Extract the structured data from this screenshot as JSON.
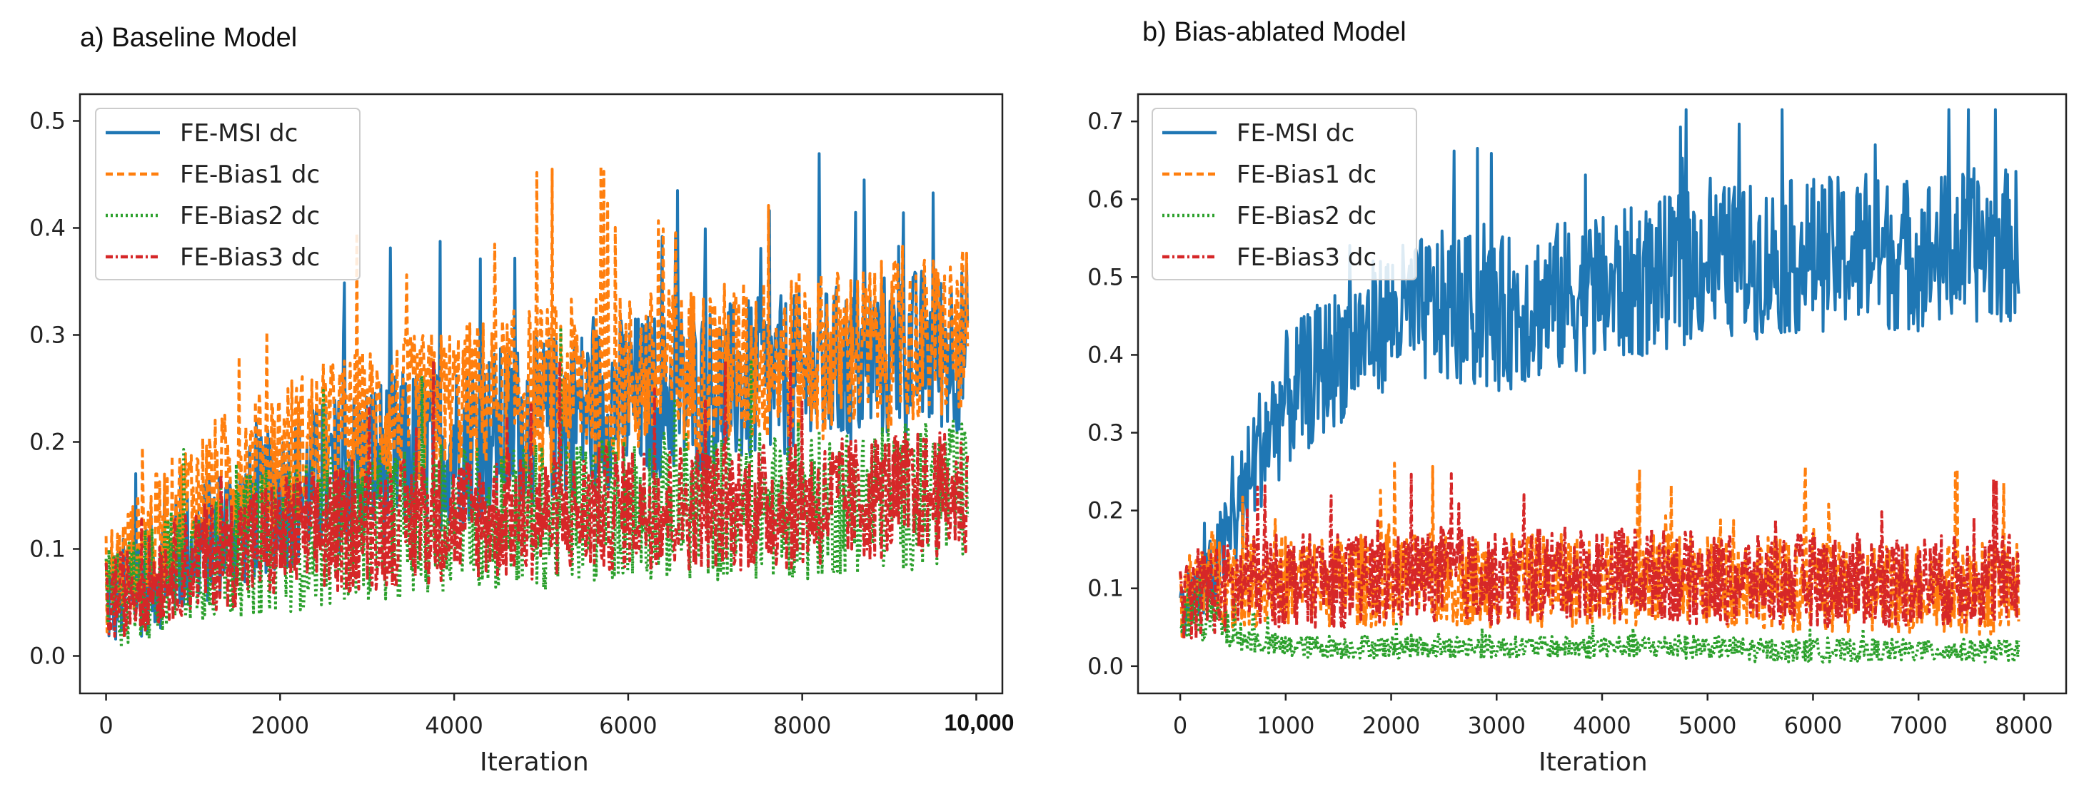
{
  "panels": {
    "a": {
      "label": "a) Baseline Model",
      "xlabel": "Iteration",
      "x_ticks": [
        "0",
        "2000",
        "4000",
        "6000",
        "8000",
        "10,000"
      ],
      "y_ticks": [
        "0.0",
        "0.1",
        "0.2",
        "0.3",
        "0.4",
        "0.5"
      ]
    },
    "b": {
      "label": "b) Bias-ablated Model",
      "xlabel": "Iteration",
      "x_ticks": [
        "0",
        "1000",
        "2000",
        "3000",
        "4000",
        "5000",
        "6000",
        "7000",
        "8000"
      ],
      "y_ticks": [
        "0.0",
        "0.1",
        "0.2",
        "0.3",
        "0.4",
        "0.5",
        "0.6",
        "0.7"
      ]
    }
  },
  "chart_data": [
    {
      "type": "line",
      "title": "a) Baseline Model",
      "xlabel": "Iteration",
      "ylabel": "",
      "xlim": [
        -300,
        10300
      ],
      "ylim": [
        -0.035,
        0.525
      ],
      "legend_position": "top-left",
      "series": [
        {
          "name": "FE-MSI dc",
          "color": "#1f77b4",
          "style": "solid",
          "x": [
            0,
            1000,
            2000,
            3000,
            4000,
            5000,
            6000,
            7000,
            8000,
            9000,
            9900
          ],
          "values": [
            0.05,
            0.1,
            0.15,
            0.18,
            0.2,
            0.22,
            0.24,
            0.25,
            0.26,
            0.28,
            0.29
          ],
          "band": [
            0.05,
            0.06,
            0.07,
            0.08,
            0.08,
            0.08,
            0.08,
            0.08,
            0.08,
            0.08,
            0.08
          ]
        },
        {
          "name": "FE-Bias1 dc",
          "color": "#ff7f0e",
          "style": "dashed",
          "x": [
            0,
            1000,
            2000,
            3000,
            4000,
            5000,
            6000,
            7000,
            8000,
            9000,
            9900
          ],
          "values": [
            0.07,
            0.15,
            0.19,
            0.22,
            0.24,
            0.25,
            0.26,
            0.27,
            0.28,
            0.29,
            0.3
          ],
          "band": [
            0.05,
            0.06,
            0.07,
            0.07,
            0.07,
            0.08,
            0.08,
            0.08,
            0.08,
            0.08,
            0.08
          ]
        },
        {
          "name": "FE-Bias2 dc",
          "color": "#2ca02c",
          "style": "dotted",
          "x": [
            0,
            1000,
            2000,
            3000,
            4000,
            5000,
            6000,
            7000,
            8000,
            9000,
            9900
          ],
          "values": [
            0.05,
            0.09,
            0.11,
            0.12,
            0.13,
            0.13,
            0.14,
            0.14,
            0.14,
            0.15,
            0.15
          ],
          "band": [
            0.05,
            0.06,
            0.07,
            0.07,
            0.07,
            0.07,
            0.07,
            0.07,
            0.07,
            0.07,
            0.07
          ]
        },
        {
          "name": "FE-Bias3 dc",
          "color": "#d62728",
          "style": "dashdot",
          "x": [
            0,
            1000,
            2000,
            3000,
            4000,
            5000,
            6000,
            7000,
            8000,
            9000,
            9900
          ],
          "values": [
            0.05,
            0.09,
            0.11,
            0.12,
            0.13,
            0.13,
            0.14,
            0.14,
            0.14,
            0.15,
            0.15
          ],
          "band": [
            0.04,
            0.05,
            0.06,
            0.06,
            0.06,
            0.06,
            0.06,
            0.06,
            0.06,
            0.06,
            0.06
          ]
        }
      ]
    },
    {
      "type": "line",
      "title": "b) Bias-ablated Model",
      "xlabel": "Iteration",
      "ylabel": "",
      "xlim": [
        -400,
        8400
      ],
      "ylim": [
        -0.035,
        0.735
      ],
      "legend_position": "top-left",
      "series": [
        {
          "name": "FE-MSI dc",
          "color": "#1f77b4",
          "style": "solid",
          "x": [
            0,
            250,
            500,
            750,
            1000,
            1500,
            2000,
            2500,
            3000,
            3500,
            4000,
            4500,
            5000,
            5500,
            6000,
            6500,
            7000,
            7500,
            7950
          ],
          "values": [
            0.08,
            0.1,
            0.18,
            0.28,
            0.34,
            0.4,
            0.45,
            0.46,
            0.45,
            0.47,
            0.48,
            0.5,
            0.52,
            0.52,
            0.53,
            0.53,
            0.53,
            0.54,
            0.54
          ],
          "band": [
            0.04,
            0.05,
            0.07,
            0.08,
            0.09,
            0.09,
            0.09,
            0.1,
            0.1,
            0.1,
            0.1,
            0.1,
            0.1,
            0.1,
            0.1,
            0.1,
            0.1,
            0.1,
            0.1
          ]
        },
        {
          "name": "FE-Bias1 dc",
          "color": "#ff7f0e",
          "style": "dashed",
          "x": [
            0,
            250,
            500,
            750,
            1000,
            1500,
            2000,
            2500,
            3000,
            3500,
            4000,
            4500,
            5000,
            5500,
            6000,
            6500,
            7000,
            7500,
            7950
          ],
          "values": [
            0.08,
            0.12,
            0.11,
            0.11,
            0.11,
            0.11,
            0.11,
            0.11,
            0.11,
            0.11,
            0.11,
            0.11,
            0.11,
            0.11,
            0.1,
            0.1,
            0.1,
            0.1,
            0.1
          ],
          "band": [
            0.05,
            0.06,
            0.06,
            0.06,
            0.06,
            0.06,
            0.06,
            0.06,
            0.06,
            0.06,
            0.06,
            0.06,
            0.06,
            0.06,
            0.06,
            0.06,
            0.06,
            0.06,
            0.06
          ]
        },
        {
          "name": "FE-Bias2 dc",
          "color": "#2ca02c",
          "style": "dotted",
          "x": [
            0,
            250,
            500,
            750,
            1000,
            1500,
            2000,
            2500,
            3000,
            3500,
            4000,
            4500,
            5000,
            5500,
            6000,
            6500,
            7000,
            7500,
            7950
          ],
          "values": [
            0.06,
            0.07,
            0.04,
            0.03,
            0.025,
            0.025,
            0.025,
            0.025,
            0.025,
            0.025,
            0.025,
            0.025,
            0.025,
            0.02,
            0.02,
            0.02,
            0.02,
            0.02,
            0.02
          ],
          "band": [
            0.03,
            0.04,
            0.02,
            0.015,
            0.015,
            0.015,
            0.015,
            0.015,
            0.015,
            0.015,
            0.015,
            0.015,
            0.015,
            0.015,
            0.015,
            0.015,
            0.015,
            0.015,
            0.015
          ]
        },
        {
          "name": "FE-Bias3 dc",
          "color": "#d62728",
          "style": "dashdot",
          "x": [
            0,
            250,
            500,
            750,
            1000,
            1500,
            2000,
            2500,
            3000,
            3500,
            4000,
            4500,
            5000,
            5500,
            6000,
            6500,
            7000,
            7500,
            7950
          ],
          "values": [
            0.08,
            0.1,
            0.1,
            0.11,
            0.11,
            0.11,
            0.11,
            0.12,
            0.11,
            0.12,
            0.12,
            0.12,
            0.11,
            0.11,
            0.11,
            0.11,
            0.11,
            0.11,
            0.11
          ],
          "band": [
            0.05,
            0.06,
            0.06,
            0.06,
            0.06,
            0.06,
            0.06,
            0.06,
            0.06,
            0.06,
            0.06,
            0.06,
            0.06,
            0.06,
            0.06,
            0.06,
            0.06,
            0.06,
            0.06
          ]
        }
      ]
    }
  ]
}
